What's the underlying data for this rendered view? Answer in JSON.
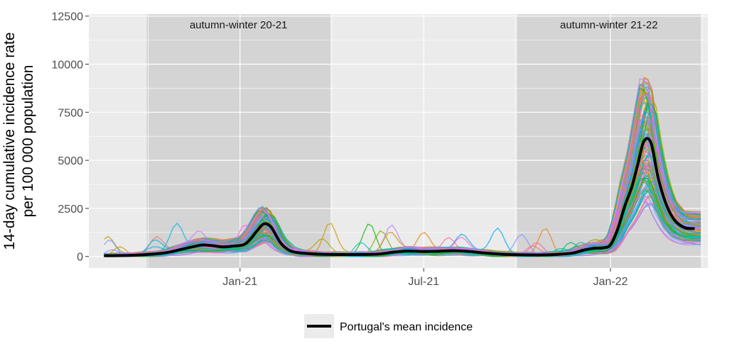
{
  "chart_data": {
    "type": "line",
    "title": "",
    "xlabel": "",
    "ylabel": "14-day cumulative incidence rate per 100 000 population",
    "ylabel_lines": [
      "14-day cumulative incidence rate",
      "per 100 000 population"
    ],
    "y_ticks": [
      0,
      2500,
      5000,
      7500,
      10000,
      12500
    ],
    "y_tick_labels": [
      "0",
      "2500",
      "5000",
      "7500",
      "10000",
      "12500"
    ],
    "ylim": [
      -600,
      12600
    ],
    "x_ticks": [
      "2021-01-01",
      "2021-07-01",
      "2022-01-01"
    ],
    "x_tick_labels": [
      "Jan-21",
      "Jul-21",
      "Jan-22"
    ],
    "xlim": [
      "2020-08-05",
      "2022-04-07"
    ],
    "grid": true,
    "shaded_periods": [
      {
        "label": "autumn-winter 20-21",
        "start": "2020-10-01",
        "end": "2021-03-31"
      },
      {
        "label": "autumn-winter 21-22",
        "start": "2021-10-01",
        "end": "2022-03-31"
      }
    ],
    "legend": {
      "position": "bottom",
      "entries": [
        "Portugal's mean incidence"
      ]
    },
    "colors": {
      "panel": "#ebebeb",
      "shade": "#d4d4d4",
      "grid": "#ffffff",
      "mean_line": "#000000",
      "municipality_palette": [
        "#f8766d",
        "#e68613",
        "#cd9600",
        "#aba300",
        "#7cae00",
        "#0cb702",
        "#00be67",
        "#00c19a",
        "#00bfc4",
        "#00b8e7",
        "#00a9ff",
        "#8494ff",
        "#c77cff",
        "#ed68ed",
        "#ff61cc",
        "#ff68a1"
      ]
    },
    "series": [
      {
        "name": "Portugal's mean incidence",
        "x": [
          "2020-08-20",
          "2020-09-15",
          "2020-10-01",
          "2020-10-15",
          "2020-10-25",
          "2020-11-05",
          "2020-11-15",
          "2020-11-25",
          "2020-12-05",
          "2020-12-15",
          "2020-12-25",
          "2021-01-05",
          "2021-01-12",
          "2021-01-18",
          "2021-01-25",
          "2021-02-01",
          "2021-02-10",
          "2021-02-20",
          "2021-03-05",
          "2021-03-20",
          "2021-04-15",
          "2021-05-15",
          "2021-06-01",
          "2021-06-15",
          "2021-06-30",
          "2021-07-15",
          "2021-07-30",
          "2021-08-15",
          "2021-08-30",
          "2021-09-15",
          "2021-10-01",
          "2021-10-20",
          "2021-11-10",
          "2021-11-25",
          "2021-12-05",
          "2021-12-15",
          "2021-12-25",
          "2022-01-01",
          "2022-01-08",
          "2022-01-15",
          "2022-01-22",
          "2022-01-28",
          "2022-02-03",
          "2022-02-10",
          "2022-02-17",
          "2022-02-25",
          "2022-03-05",
          "2022-03-15",
          "2022-03-25"
        ],
        "values": [
          40,
          60,
          100,
          160,
          240,
          380,
          500,
          600,
          560,
          500,
          540,
          620,
          950,
          1350,
          1700,
          1500,
          700,
          280,
          170,
          120,
          100,
          120,
          220,
          280,
          260,
          270,
          300,
          260,
          180,
          120,
          90,
          80,
          110,
          180,
          320,
          420,
          450,
          600,
          1400,
          2600,
          3600,
          4800,
          6000,
          5900,
          4100,
          2700,
          1900,
          1500,
          1450
        ]
      }
    ]
  },
  "municipality_series_note_hidden": ""
}
